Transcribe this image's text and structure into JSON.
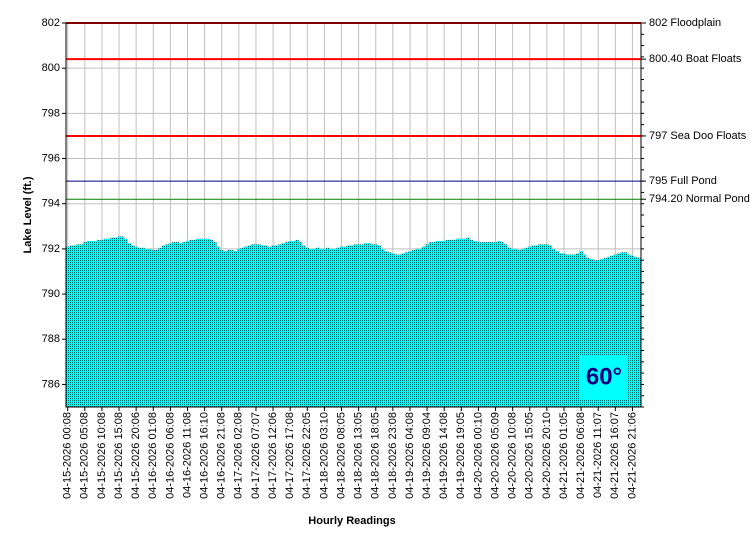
{
  "chart_data": {
    "type": "bar",
    "ylabel": "Lake Level (ft.)",
    "xlabel": "Hourly Readings",
    "annotation": "60°",
    "color": "#00ffff",
    "grid": true,
    "ylim": [
      785,
      802
    ],
    "yticks": [
      786,
      788,
      790,
      792,
      794,
      796,
      798,
      800,
      802
    ],
    "reference_lines": [
      {
        "value": 802,
        "label": "802 Floodplain",
        "color": "#ff0000"
      },
      {
        "value": 800.4,
        "label": "800.40 Boat Floats",
        "color": "#ff0000"
      },
      {
        "value": 797,
        "label": "797 Sea Doo Floats",
        "color": "#ff0000"
      },
      {
        "value": 795,
        "label": "795 Full Pond",
        "color": "#000080"
      },
      {
        "value": 794.2,
        "label": "794.20 Normal Pond",
        "color": "#008000"
      }
    ],
    "categories": [
      "04-15-2026 00:08",
      null,
      null,
      null,
      null,
      "04-15-2026 05:08",
      null,
      null,
      null,
      null,
      "04-15-2026 10:08",
      null,
      null,
      null,
      null,
      "04-15-2026 15:08",
      null,
      null,
      null,
      null,
      "04-15-2026 20:06",
      null,
      null,
      null,
      null,
      "04-16-2026 01:08",
      null,
      null,
      null,
      null,
      "04-16-2026 06:08",
      null,
      null,
      null,
      null,
      "04-16-2026 11:08",
      null,
      null,
      null,
      null,
      "04-16-2026 16:10",
      null,
      null,
      null,
      null,
      "04-16-2026 21:08",
      null,
      null,
      null,
      null,
      "04-17-2026 02:08",
      null,
      null,
      null,
      null,
      "04-17-2026 07:07",
      null,
      null,
      null,
      null,
      "04-17-2026 12:06",
      null,
      null,
      null,
      null,
      "04-17-2026 17:08",
      null,
      null,
      null,
      null,
      "04-17-2026 22:05",
      null,
      null,
      null,
      null,
      "04-18-2026 03:10",
      null,
      null,
      null,
      null,
      "04-18-2026 08:05",
      null,
      null,
      null,
      null,
      "04-18-2026 13:05",
      null,
      null,
      null,
      null,
      "04-18-2026 18:05",
      null,
      null,
      null,
      null,
      "04-18-2026 23:08",
      null,
      null,
      null,
      null,
      "04-19-2026 04:08",
      null,
      null,
      null,
      null,
      "04-19-2026 09:04",
      null,
      null,
      null,
      null,
      "04-19-2026 14:08",
      null,
      null,
      null,
      null,
      "04-19-2026 19:05",
      null,
      null,
      null,
      null,
      "04-20-2026 00:10",
      null,
      null,
      null,
      null,
      "04-20-2026 05:09",
      null,
      null,
      null,
      null,
      "04-20-2026 10:08",
      null,
      null,
      null,
      null,
      "04-20-2026 15:05",
      null,
      null,
      null,
      null,
      "04-20-2026 20:10",
      null,
      null,
      null,
      null,
      "04-21-2026 01:05",
      null,
      null,
      null,
      null,
      "04-21-2026 06:08",
      null,
      null,
      null,
      null,
      "04-21-2026 11:07",
      null,
      null,
      null,
      null,
      "04-21-2026 16:07",
      null,
      null,
      null,
      null,
      "04-21-2026 21:06",
      null,
      null
    ],
    "values": [
      792.1,
      792.15,
      792.15,
      792.2,
      792.2,
      792.3,
      792.35,
      792.35,
      792.35,
      792.4,
      792.4,
      792.45,
      792.45,
      792.5,
      792.5,
      792.55,
      792.55,
      792.45,
      792.25,
      792.15,
      792.1,
      792.05,
      792.05,
      792.0,
      792.0,
      791.95,
      791.95,
      792.05,
      792.15,
      792.2,
      792.25,
      792.3,
      792.3,
      792.25,
      792.3,
      792.35,
      792.4,
      792.4,
      792.45,
      792.45,
      792.45,
      792.45,
      792.4,
      792.3,
      792.1,
      791.95,
      791.9,
      791.95,
      791.95,
      791.9,
      792.0,
      792.05,
      792.1,
      792.15,
      792.2,
      792.2,
      792.2,
      792.15,
      792.15,
      792.1,
      792.15,
      792.15,
      792.2,
      792.25,
      792.3,
      792.35,
      792.35,
      792.4,
      792.3,
      792.15,
      792.05,
      792.0,
      792.0,
      792.05,
      792.0,
      792.0,
      792.05,
      792.0,
      792.0,
      792.05,
      792.1,
      792.1,
      792.15,
      792.15,
      792.2,
      792.2,
      792.2,
      792.25,
      792.25,
      792.2,
      792.2,
      792.15,
      792.0,
      791.9,
      791.85,
      791.8,
      791.75,
      791.75,
      791.8,
      791.85,
      791.9,
      791.95,
      792.0,
      792.0,
      792.1,
      792.2,
      792.3,
      792.3,
      792.35,
      792.35,
      792.35,
      792.4,
      792.4,
      792.4,
      792.45,
      792.45,
      792.45,
      792.5,
      792.4,
      792.35,
      792.3,
      792.3,
      792.3,
      792.3,
      792.3,
      792.3,
      792.35,
      792.3,
      792.2,
      792.05,
      792.0,
      792.0,
      791.95,
      792.0,
      792.05,
      792.1,
      792.15,
      792.15,
      792.2,
      792.2,
      792.2,
      792.15,
      792.0,
      791.9,
      791.8,
      791.8,
      791.75,
      791.75,
      791.75,
      791.8,
      791.9,
      791.75,
      791.6,
      791.55,
      791.5,
      791.5,
      791.55,
      791.6,
      791.65,
      791.7,
      791.75,
      791.8,
      791.85,
      791.85,
      791.75,
      791.7,
      791.65,
      791.6
    ]
  }
}
